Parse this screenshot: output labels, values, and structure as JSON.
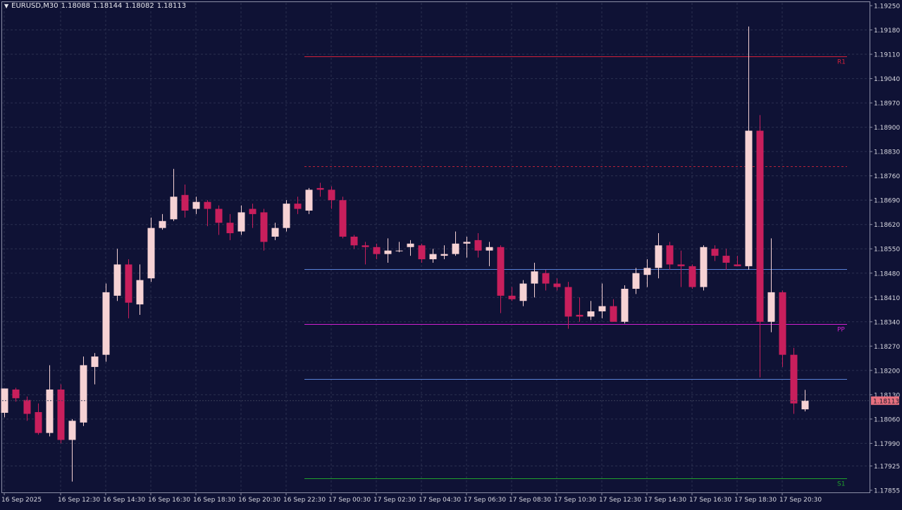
{
  "header": {
    "symbol_timeframe": "EURUSD,M30",
    "open": "1.18088",
    "high": "1.18144",
    "low": "1.18082",
    "close": "1.18113"
  },
  "current_price_label": "1.18113",
  "colors": {
    "background": "#0f1235",
    "grid": "#2b3050",
    "bull_candle": "#f6d2d4",
    "bear_candle": "#c81f5c",
    "axis_text": "#d8d8e0",
    "price_tag": "#e8707f"
  },
  "chart_data": {
    "type": "candlestick",
    "ylim": [
      1.17855,
      1.1925
    ],
    "y_ticks": [
      "1.19250",
      "1.19180",
      "1.19110",
      "1.19040",
      "1.18970",
      "1.18900",
      "1.18830",
      "1.18760",
      "1.18690",
      "1.18620",
      "1.18550",
      "1.18480",
      "1.18410",
      "1.18340",
      "1.18270",
      "1.18200",
      "1.18130",
      "1.18060",
      "1.17990",
      "1.17925",
      "1.17855"
    ],
    "x_labels": [
      {
        "label": "16 Sep 2025",
        "index": 0
      },
      {
        "label": "16 Sep 12:30",
        "index": 5
      },
      {
        "label": "16 Sep 14:30",
        "index": 9
      },
      {
        "label": "16 Sep 16:30",
        "index": 13
      },
      {
        "label": "16 Sep 18:30",
        "index": 17
      },
      {
        "label": "16 Sep 20:30",
        "index": 21
      },
      {
        "label": "16 Sep 22:30",
        "index": 25
      },
      {
        "label": "17 Sep 00:30",
        "index": 29
      },
      {
        "label": "17 Sep 02:30",
        "index": 33
      },
      {
        "label": "17 Sep 04:30",
        "index": 37
      },
      {
        "label": "17 Sep 06:30",
        "index": 41
      },
      {
        "label": "17 Sep 08:30",
        "index": 45
      },
      {
        "label": "17 Sep 10:30",
        "index": 49
      },
      {
        "label": "17 Sep 12:30",
        "index": 53
      },
      {
        "label": "17 Sep 14:30",
        "index": 57
      },
      {
        "label": "17 Sep 16:30",
        "index": 61
      },
      {
        "label": "17 Sep 18:30",
        "index": 65
      },
      {
        "label": "17 Sep 20:30",
        "index": 69
      }
    ],
    "candles": [
      [
        1.18078,
        1.18145,
        1.18065,
        1.18148
      ],
      [
        1.18145,
        1.1815,
        1.1811,
        1.1812
      ],
      [
        1.18115,
        1.18125,
        1.18055,
        1.18075
      ],
      [
        1.1808,
        1.18105,
        1.18015,
        1.1802
      ],
      [
        1.1802,
        1.18215,
        1.1801,
        1.18145
      ],
      [
        1.18145,
        1.1816,
        1.1799,
        1.18
      ],
      [
        1.18,
        1.1806,
        1.1788,
        1.18055
      ],
      [
        1.1805,
        1.1824,
        1.1804,
        1.18215
      ],
      [
        1.1821,
        1.1825,
        1.1816,
        1.1824
      ],
      [
        1.18245,
        1.1845,
        1.18225,
        1.18425
      ],
      [
        1.18415,
        1.1855,
        1.184,
        1.18505
      ],
      [
        1.18505,
        1.1852,
        1.1835,
        1.18395
      ],
      [
        1.1839,
        1.18505,
        1.1836,
        1.1846
      ],
      [
        1.18465,
        1.1864,
        1.18455,
        1.1861
      ],
      [
        1.1861,
        1.1865,
        1.18605,
        1.1863
      ],
      [
        1.18635,
        1.1878,
        1.1863,
        1.187
      ],
      [
        1.18705,
        1.18735,
        1.1864,
        1.1866
      ],
      [
        1.18665,
        1.187,
        1.1865,
        1.18685
      ],
      [
        1.18685,
        1.1869,
        1.18615,
        1.18665
      ],
      [
        1.18665,
        1.18675,
        1.1859,
        1.18625
      ],
      [
        1.18625,
        1.1865,
        1.18575,
        1.18595
      ],
      [
        1.186,
        1.18675,
        1.1859,
        1.18655
      ],
      [
        1.18665,
        1.1868,
        1.1861,
        1.1865
      ],
      [
        1.18655,
        1.18665,
        1.18545,
        1.1857
      ],
      [
        1.18585,
        1.18625,
        1.18575,
        1.1861
      ],
      [
        1.1861,
        1.1869,
        1.186,
        1.1868
      ],
      [
        1.1868,
        1.187,
        1.1865,
        1.18665
      ],
      [
        1.1866,
        1.18725,
        1.1865,
        1.1872
      ],
      [
        1.18725,
        1.1874,
        1.187,
        1.1872
      ],
      [
        1.1872,
        1.1873,
        1.18665,
        1.1869
      ],
      [
        1.1869,
        1.187,
        1.1858,
        1.18585
      ],
      [
        1.18585,
        1.1859,
        1.1855,
        1.1856
      ],
      [
        1.1856,
        1.1857,
        1.18505,
        1.18555
      ],
      [
        1.18555,
        1.18565,
        1.1852,
        1.18535
      ],
      [
        1.18535,
        1.1858,
        1.1851,
        1.18545
      ],
      [
        1.18545,
        1.1857,
        1.1854,
        1.18545
      ],
      [
        1.18555,
        1.18575,
        1.1853,
        1.18565
      ],
      [
        1.1856,
        1.18565,
        1.1851,
        1.1852
      ],
      [
        1.1852,
        1.1855,
        1.1851,
        1.18535
      ],
      [
        1.1853,
        1.1856,
        1.1852,
        1.18535
      ],
      [
        1.18535,
        1.186,
        1.1853,
        1.18565
      ],
      [
        1.18565,
        1.18585,
        1.18525,
        1.1857
      ],
      [
        1.18575,
        1.18595,
        1.18525,
        1.18545
      ],
      [
        1.18545,
        1.1857,
        1.185,
        1.18555
      ],
      [
        1.18555,
        1.1856,
        1.18365,
        1.18415
      ],
      [
        1.18415,
        1.1844,
        1.184,
        1.18405
      ],
      [
        1.184,
        1.1846,
        1.18385,
        1.1845
      ],
      [
        1.1845,
        1.1851,
        1.1841,
        1.18485
      ],
      [
        1.1848,
        1.1849,
        1.1843,
        1.1845
      ],
      [
        1.1845,
        1.18465,
        1.1843,
        1.1844
      ],
      [
        1.1844,
        1.18455,
        1.1832,
        1.18355
      ],
      [
        1.1836,
        1.1841,
        1.1834,
        1.18355
      ],
      [
        1.18355,
        1.184,
        1.18345,
        1.1837
      ],
      [
        1.1837,
        1.1845,
        1.1835,
        1.18385
      ],
      [
        1.18385,
        1.18405,
        1.1834,
        1.1834
      ],
      [
        1.1834,
        1.18445,
        1.18335,
        1.18435
      ],
      [
        1.18435,
        1.18495,
        1.1842,
        1.1848
      ],
      [
        1.18475,
        1.1852,
        1.1844,
        1.18495
      ],
      [
        1.18495,
        1.18595,
        1.18465,
        1.1856
      ],
      [
        1.1856,
        1.1857,
        1.1849,
        1.18505
      ],
      [
        1.18505,
        1.18545,
        1.1844,
        1.185
      ],
      [
        1.185,
        1.18505,
        1.18435,
        1.1844
      ],
      [
        1.1844,
        1.1856,
        1.1843,
        1.18555
      ],
      [
        1.1855,
        1.1856,
        1.18515,
        1.1853
      ],
      [
        1.1853,
        1.1855,
        1.1849,
        1.1851
      ],
      [
        1.18505,
        1.1853,
        1.18505,
        1.185
      ],
      [
        1.185,
        1.1919,
        1.1849,
        1.1889
      ],
      [
        1.1889,
        1.18935,
        1.1818,
        1.1834
      ],
      [
        1.1834,
        1.1858,
        1.1831,
        1.18425
      ],
      [
        1.18425,
        1.1843,
        1.1821,
        1.18245
      ],
      [
        1.18245,
        1.18265,
        1.18075,
        1.18105
      ],
      [
        1.18088,
        1.18144,
        1.18082,
        1.18113
      ]
    ],
    "levels": [
      {
        "name": "R1",
        "value": 1.19103,
        "color": "#d3203a",
        "style": "solid",
        "label": "R1"
      },
      {
        "name": "",
        "value": 1.18788,
        "color": "#b8203a",
        "style": "dashed",
        "label": ""
      },
      {
        "name": "",
        "value": 1.18491,
        "color": "#5a82d8",
        "style": "solid",
        "label": ""
      },
      {
        "name": "PP",
        "value": 1.18334,
        "color": "#d020d0",
        "style": "solid",
        "label": "PP"
      },
      {
        "name": "",
        "value": 1.18175,
        "color": "#5a82d8",
        "style": "solid",
        "label": ""
      },
      {
        "name": "S1",
        "value": 1.1789,
        "color": "#1fa02c",
        "style": "solid",
        "label": "S1"
      }
    ],
    "level_start_index": 27
  }
}
